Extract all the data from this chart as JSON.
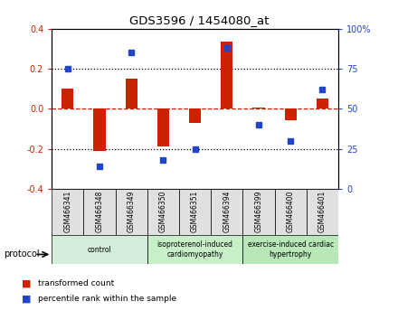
{
  "title": "GDS3596 / 1454080_at",
  "samples": [
    "GSM466341",
    "GSM466348",
    "GSM466349",
    "GSM466350",
    "GSM466351",
    "GSM466394",
    "GSM466399",
    "GSM466400",
    "GSM466401"
  ],
  "red_values": [
    0.1,
    -0.21,
    0.15,
    -0.19,
    -0.07,
    0.335,
    0.005,
    -0.055,
    0.05
  ],
  "blue_values": [
    75,
    14,
    85,
    18,
    25,
    88,
    40,
    30,
    62
  ],
  "ylim_left": [
    -0.4,
    0.4
  ],
  "ylim_right": [
    0,
    100
  ],
  "yticks_left": [
    -0.4,
    -0.2,
    0.0,
    0.2,
    0.4
  ],
  "yticks_right": [
    0,
    25,
    50,
    75,
    100
  ],
  "ytick_labels_right": [
    "0",
    "25",
    "50",
    "75",
    "100%"
  ],
  "groups": [
    {
      "label": "control",
      "start": 0,
      "end": 3,
      "color": "#d4edda"
    },
    {
      "label": "isoproterenol-induced\ncardiomyopathy",
      "start": 3,
      "end": 6,
      "color": "#c8f0c8"
    },
    {
      "label": "exercise-induced cardiac\nhypertrophy",
      "start": 6,
      "end": 9,
      "color": "#b8e8b8"
    }
  ],
  "red_color": "#cc2200",
  "blue_color": "#2244cc",
  "zero_line_color": "#cc2200",
  "dotted_line_color": "#000000",
  "bg_color": "#ffffff",
  "bar_bg": "#e0e0e0",
  "legend_red": "transformed count",
  "legend_blue": "percentile rank within the sample",
  "protocol_label": "protocol"
}
